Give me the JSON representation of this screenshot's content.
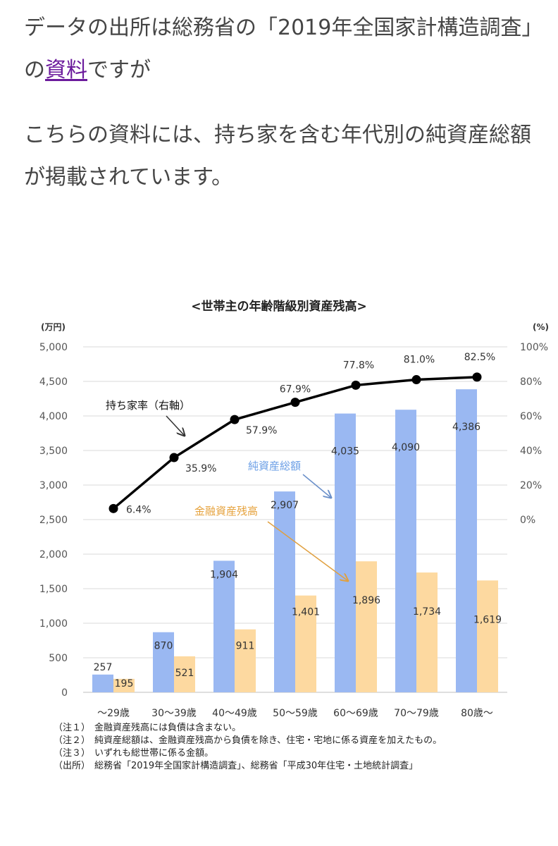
{
  "article": {
    "p1_before": "データの出所は総務省の「2019年全国家計構造調査」の",
    "p1_link": "資料",
    "p1_after": "ですが",
    "p2": "こちらの資料には、持ち家を含む年代別の純資産総額が掲載されています。"
  },
  "chart_data": {
    "type": "bar",
    "title": "<世帯主の年齢階級別資産残高>",
    "ylabel": "(万円)",
    "y2label": "(%)",
    "ylim": [
      0,
      5000
    ],
    "y2lim": [
      -100,
      100
    ],
    "yticks": [
      "0",
      "500",
      "1,000",
      "1,500",
      "2,000",
      "2,500",
      "3,000",
      "3,500",
      "4,000",
      "4,500",
      "5,000"
    ],
    "y2ticks": [
      "0%",
      "20%",
      "40%",
      "60%",
      "80%",
      "100%"
    ],
    "categories": [
      "～29歳",
      "30～39歳",
      "40～49歳",
      "50～59歳",
      "60～69歳",
      "70～79歳",
      "80歳～"
    ],
    "series": [
      {
        "name": "純資産総額",
        "type": "bar",
        "color": "#9ab8f2",
        "values": [
          257,
          870,
          1904,
          2907,
          4035,
          4090,
          4386
        ],
        "labels": [
          "257",
          "870",
          "1,904",
          "2,907",
          "4,035",
          "4,090",
          "4,386"
        ]
      },
      {
        "name": "金融資産残高",
        "type": "bar",
        "color": "#fdd9a0",
        "values": [
          195,
          521,
          911,
          1401,
          1896,
          1734,
          1619
        ],
        "labels": [
          "195",
          "521",
          "911",
          "1,401",
          "1,896",
          "1,734",
          "1,619"
        ]
      },
      {
        "name": "持ち家率（右軸）",
        "type": "line",
        "axis": "right",
        "color": "#000000",
        "values": [
          6.4,
          35.9,
          57.9,
          67.9,
          77.8,
          81.0,
          82.5
        ],
        "labels": [
          "6.4%",
          "35.9%",
          "57.9%",
          "67.9%",
          "77.8%",
          "81.0%",
          "82.5%"
        ]
      }
    ],
    "annotations": {
      "net_assets": "純資産総額",
      "financial_assets": "金融資産残高",
      "ownership": "持ち家率（右軸）"
    },
    "grid": true,
    "annotation_colors": {
      "net_assets": "#6a9ee6",
      "financial_assets": "#e6a23c",
      "arrow": "#333333",
      "orange_arrow": "#e0a040"
    }
  },
  "notes": [
    {
      "label": "（注１）",
      "text": "金融資産残高には負債は含まない。"
    },
    {
      "label": "（注２）",
      "text": "純資産総額は、金融資産残高から負債を除き、住宅・宅地に係る資産を加えたもの。"
    },
    {
      "label": "（注３）",
      "text": "いずれも総世帯に係る金額。"
    },
    {
      "label": "（出所）",
      "text": "総務省「2019年全国家計構造調査」、総務省「平成30年住宅・土地統計調査」"
    }
  ]
}
